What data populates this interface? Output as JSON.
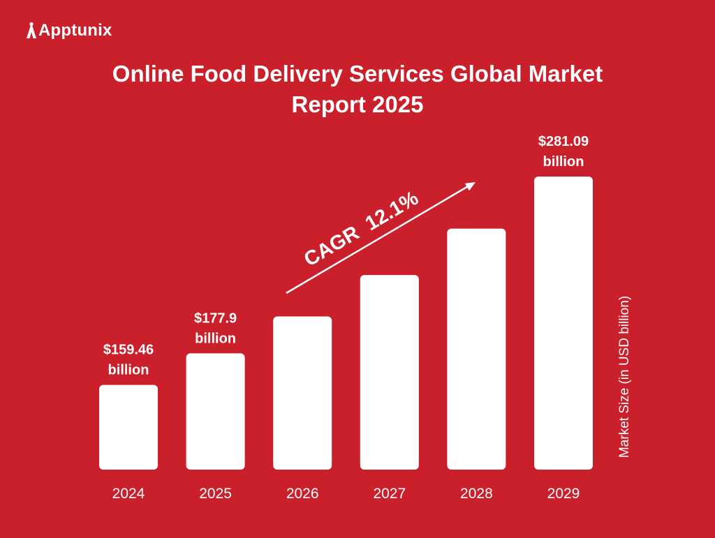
{
  "brand": {
    "name": "Apptunix",
    "logo_icon": "apptunix-logo-icon"
  },
  "colors": {
    "background": "#c9202b",
    "bar": "#ffffff",
    "text": "#ffffff"
  },
  "chart_data": {
    "type": "bar",
    "title_lines": [
      "Online Food Delivery Services Global Market",
      "Report 2025"
    ],
    "categories": [
      "2024",
      "2025",
      "2026",
      "2027",
      "2028",
      "2029"
    ],
    "values": [
      159.46,
      177.9,
      199.4,
      223.6,
      250.7,
      281.09
    ],
    "data_labels": [
      [
        "$159.46",
        "billion"
      ],
      [
        "$177.9",
        "billion"
      ],
      null,
      null,
      null,
      [
        "$281.09",
        "billion"
      ]
    ],
    "ylabel": "Market Size (in USD billion)",
    "annotation": "CAGR  12.1%",
    "ylim": [
      110,
      285
    ],
    "grid": false,
    "legend": false
  }
}
